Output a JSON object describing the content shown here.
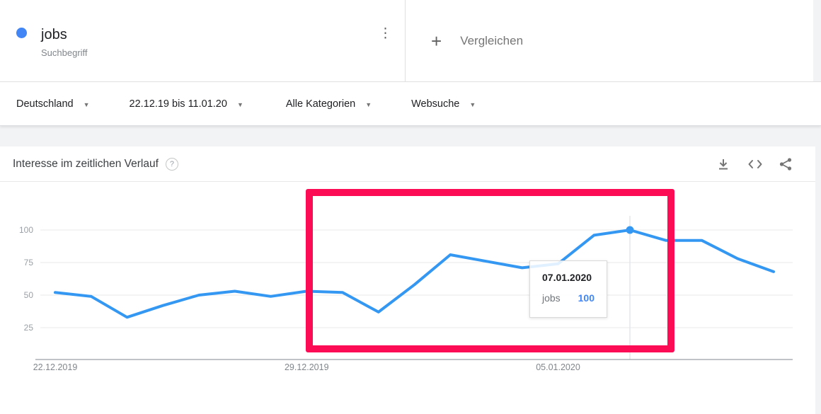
{
  "header": {
    "term": {
      "label": "jobs",
      "sublabel": "Suchbegriff",
      "dot_color": "#4285f4"
    },
    "compare": {
      "label": "Vergleichen",
      "plus_glyph": "+"
    },
    "menu_glyph": "⋮"
  },
  "filters": {
    "geo": {
      "label": "Deutschland"
    },
    "time": {
      "label": "22.12.19 bis 11.01.20"
    },
    "category": {
      "label": "Alle Kategorien"
    },
    "property": {
      "label": "Websuche"
    },
    "caret_glyph": "▼"
  },
  "widget": {
    "title": "Interesse im zeitlichen Verlauf",
    "help_glyph": "?",
    "icon_names": [
      "download-icon",
      "embed-icon",
      "share-icon"
    ]
  },
  "tooltip": {
    "date": "07.01.2020",
    "series": "jobs",
    "value": "100",
    "value_color": "#4285f4"
  },
  "annotation": {
    "shape": "highlight-rectangle",
    "color": "#fb0c55"
  },
  "chart_data": {
    "type": "line",
    "title": "Interesse im zeitlichen Verlauf",
    "x": [
      "22.12.2019",
      "23.12.2019",
      "24.12.2019",
      "25.12.2019",
      "26.12.2019",
      "27.12.2019",
      "28.12.2019",
      "29.12.2019",
      "30.12.2019",
      "31.12.2019",
      "01.01.2020",
      "02.01.2020",
      "03.01.2020",
      "04.01.2020",
      "05.01.2020",
      "06.01.2020",
      "07.01.2020",
      "08.01.2020",
      "09.01.2020",
      "10.01.2020",
      "11.01.2020"
    ],
    "series": [
      {
        "name": "jobs",
        "color": "#3498f3",
        "values": [
          52,
          49,
          33,
          42,
          50,
          53,
          49,
          53,
          52,
          37,
          58,
          81,
          76,
          71,
          74,
          96,
          100,
          92,
          92,
          78,
          68
        ]
      }
    ],
    "ylim": [
      0,
      100
    ],
    "yticks": [
      25,
      50,
      75,
      100
    ],
    "xticks": [
      "22.12.2019",
      "29.12.2019",
      "05.01.2020"
    ],
    "xtick_indices": [
      0,
      7,
      14
    ],
    "grid": true,
    "legend_position": "none",
    "highlighted_point": {
      "x": "07.01.2020",
      "index": 16,
      "value": 100
    }
  }
}
